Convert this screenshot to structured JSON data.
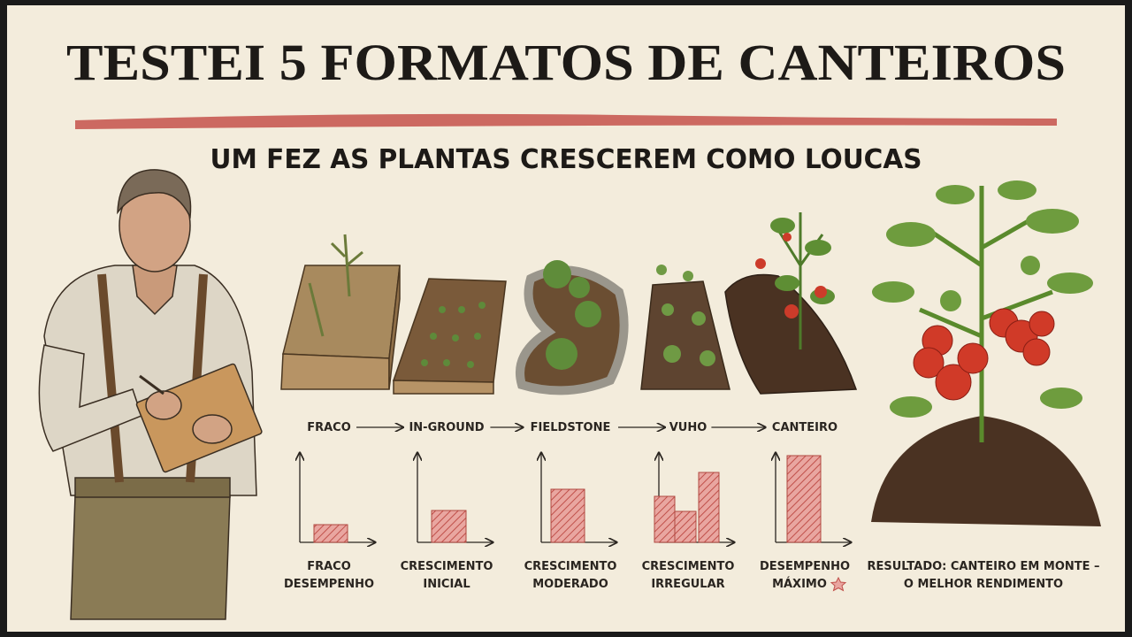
{
  "header": {
    "title": "TESTEI 5 FORMATOS DE CANTEIROS",
    "subtitle": "UM FEZ AS PLANTAS CRESCEREM COMO LOUCAS"
  },
  "stages": [
    {
      "label": "FRACO",
      "caption": [
        "FRACO",
        "DESEMPENHO"
      ]
    },
    {
      "label": "IN-GROUND",
      "caption": [
        "CRESCIMENTO",
        "INICIAL"
      ]
    },
    {
      "label": "FIELDSTONE",
      "caption": [
        "CRESCIMENTO",
        "MODERADO"
      ]
    },
    {
      "label": "VUHO",
      "caption": [
        "CRESCIMENTO",
        "IRREGULAR"
      ]
    },
    {
      "label": "CANTEIRO",
      "caption": [
        "DESEMPENHO",
        "MÁXIMO"
      ]
    }
  ],
  "result": [
    "RESULTADO: CANTEIRO EM MONTE –",
    "O MELHOR RENDIMENTO"
  ]
}
